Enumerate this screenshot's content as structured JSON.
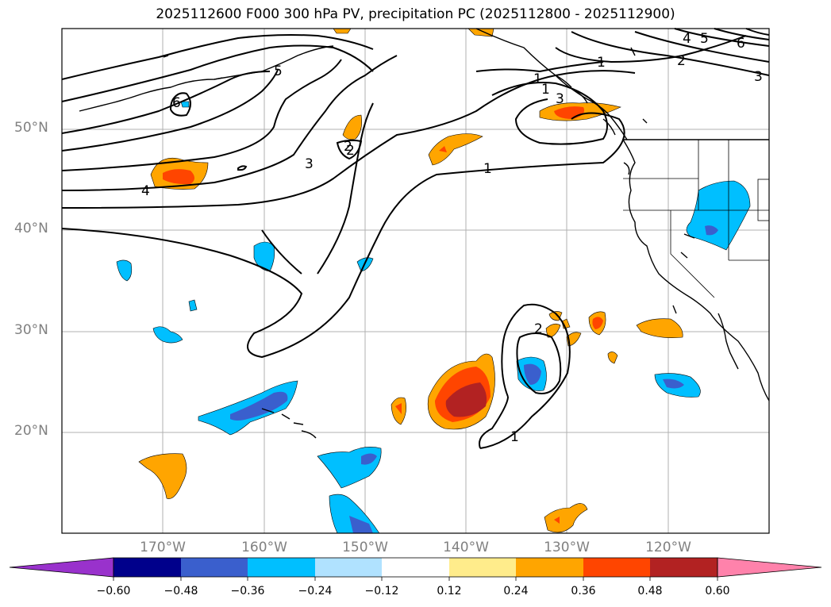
{
  "title": "2025112600 F000 300 hPa PV, precipitation PC (2025112800 - 2025112900)",
  "lat_labels": [
    "50°N",
    "40°N",
    "30°N",
    "20°N"
  ],
  "lon_labels": [
    "170°W",
    "160°W",
    "150°W",
    "140°W",
    "130°W",
    "120°W"
  ],
  "contour_labels": [
    "1",
    "1",
    "1",
    "2",
    "2",
    "3",
    "3",
    "4",
    "5",
    "6",
    "1",
    "2",
    "3",
    "4",
    "5",
    "6",
    "2",
    "1"
  ],
  "colorbar": {
    "colors": [
      "#9932CC",
      "#00008B",
      "#3A5FCD",
      "#00BFFF",
      "#B0E2FF",
      "#FFFFFF",
      "#FFEC8B",
      "#FFA500",
      "#FF4500",
      "#B22222",
      "#FF82AB"
    ],
    "ticks": [
      "−0.60",
      "−0.48",
      "−0.36",
      "−0.24",
      "−0.12",
      "0.12",
      "0.24",
      "0.36",
      "0.48",
      "0.60"
    ]
  },
  "colors": {
    "contour": "#000000",
    "grid": "#b0b0b0",
    "coast": "#000000",
    "axis_label": "#808080"
  }
}
